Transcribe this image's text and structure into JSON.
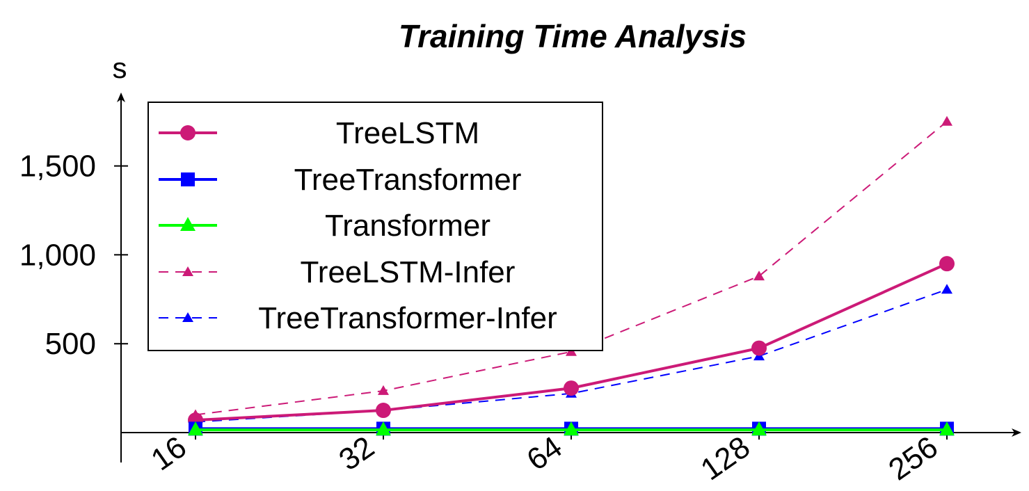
{
  "chart_data": {
    "type": "line",
    "title": "Training Time Analysis",
    "xlabel": "",
    "ylabel": "s",
    "categories": [
      "16",
      "32",
      "64",
      "128",
      "256"
    ],
    "y_ticks": [
      500,
      1000,
      1500
    ],
    "y_tick_labels": [
      "500",
      "1,000",
      "1,500"
    ],
    "ylim": [
      0,
      1800
    ],
    "grid": false,
    "legend_position": "top-left",
    "series": [
      {
        "name": "TreeLSTM",
        "values": [
          70,
          125,
          250,
          475,
          950
        ],
        "color": "#cc1a77",
        "style": "solid",
        "marker": "circle"
      },
      {
        "name": "TreeTransformer",
        "values": [
          22,
          22,
          22,
          22,
          22
        ],
        "color": "#0000ff",
        "style": "solid",
        "marker": "square"
      },
      {
        "name": "Transformer",
        "values": [
          15,
          15,
          15,
          15,
          15
        ],
        "color": "#00ff00",
        "style": "solid",
        "marker": "triangle"
      },
      {
        "name": "TreeLSTM-Infer",
        "values": [
          100,
          235,
          455,
          880,
          1750
        ],
        "color": "#cc1a77",
        "style": "dashed",
        "marker": "triangle-small"
      },
      {
        "name": "TreeTransformer-Infer",
        "values": [
          60,
          125,
          220,
          430,
          805
        ],
        "color": "#0000ff",
        "style": "dashed",
        "marker": "triangle-small"
      }
    ]
  }
}
